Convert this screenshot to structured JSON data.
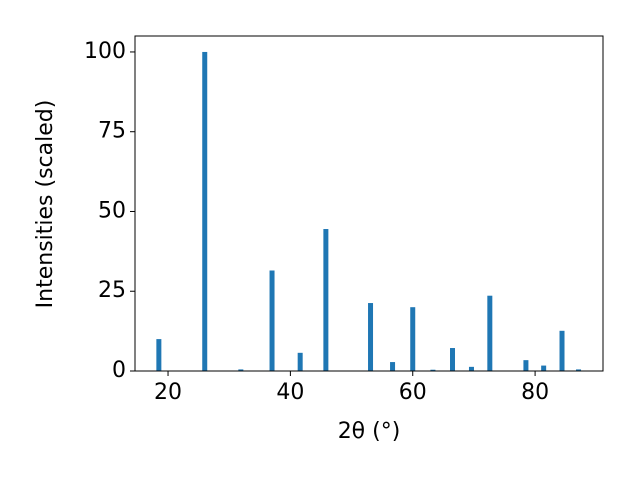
{
  "chart_data": {
    "type": "bar",
    "xlabel": "2θ (°)",
    "ylabel": "Intensities (scaled)",
    "x": [
      18.5,
      26.0,
      31.9,
      37.0,
      41.6,
      45.8,
      53.1,
      56.7,
      60.0,
      63.3,
      66.5,
      69.6,
      72.6,
      78.5,
      81.4,
      84.4,
      87.1
    ],
    "values": [
      10,
      100,
      0.5,
      31.5,
      5.7,
      44.5,
      21.3,
      2.8,
      20,
      0.4,
      7.2,
      1.3,
      23.6,
      3.4,
      1.7,
      12.6,
      0.5
    ],
    "color": "#1f77b4",
    "xlim": [
      14.6,
      91.1
    ],
    "xticks": [
      20,
      40,
      60,
      80
    ],
    "ylim": [
      0,
      105
    ],
    "yticks": [
      0,
      25,
      50,
      75,
      100
    ],
    "grid": false
  }
}
